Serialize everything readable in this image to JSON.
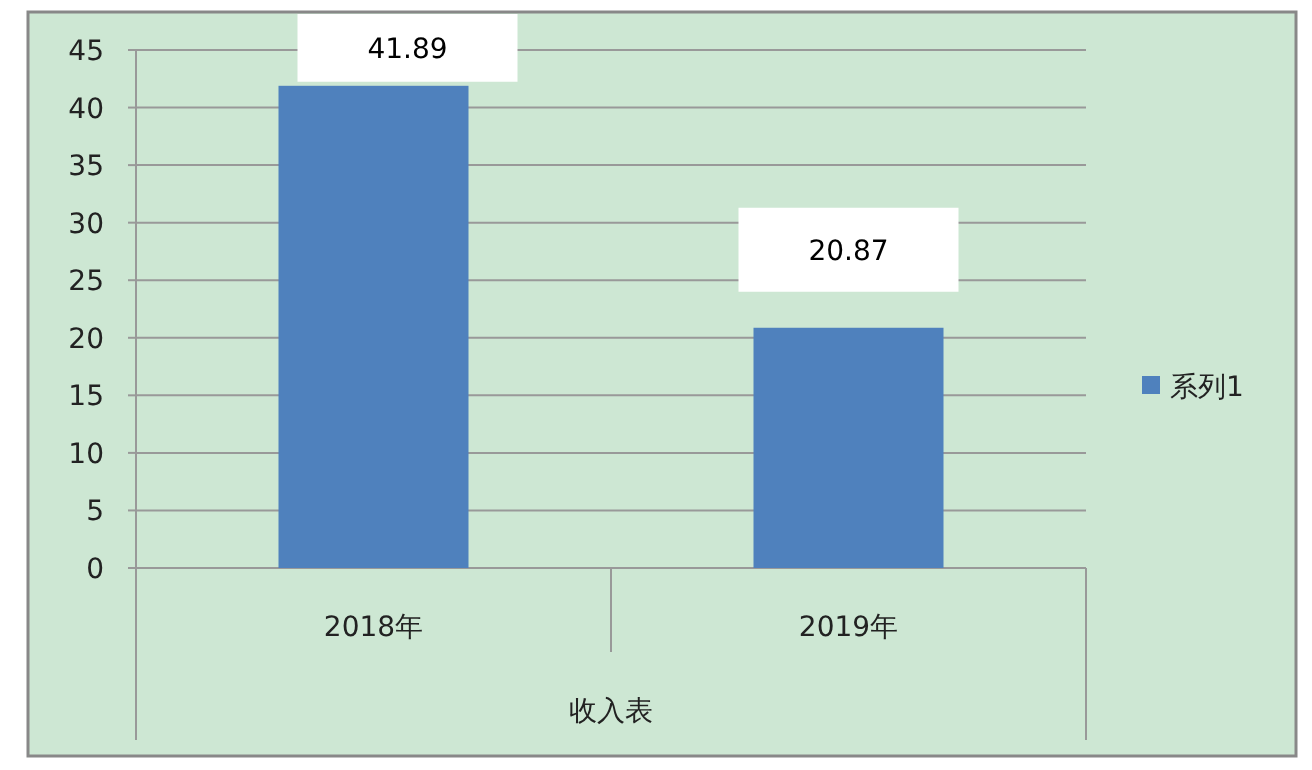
{
  "chart_data": {
    "type": "bar",
    "xlabel": "收入表",
    "categories": [
      "2018年",
      "2019年"
    ],
    "series": [
      {
        "name": "系列1",
        "color": "#4f81bd",
        "values": [
          41.89,
          20.87
        ]
      }
    ],
    "ylim": [
      0,
      45
    ],
    "yticks": [
      0,
      5,
      10,
      15,
      20,
      25,
      30,
      35,
      40,
      45
    ],
    "grid": "y",
    "legend": "right",
    "data_labels": true
  }
}
